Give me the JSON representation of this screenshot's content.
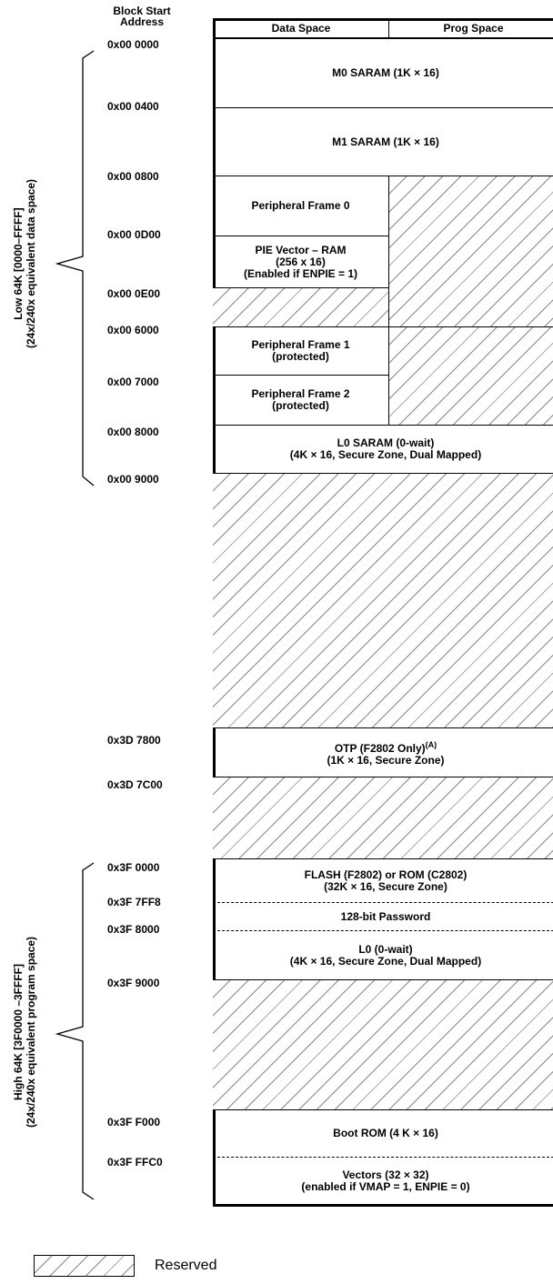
{
  "header": {
    "block_start_line1": "Block Start",
    "block_start_line2": "Address",
    "data_space": "Data Space",
    "prog_space": "Prog Space"
  },
  "addresses": [
    "0x00 0000",
    "0x00 0400",
    "0x00 0800",
    "0x00 0D00",
    "0x00 0E00",
    "0x00 6000",
    "0x00 7000",
    "0x00 8000",
    "0x00 9000",
    "0x3D 7800",
    "0x3D 7C00",
    "0x3F 0000",
    "0x3F 7FF8",
    "0x3F 8000",
    "0x3F 9000",
    "0x3F F000",
    "0x3F FFC0"
  ],
  "regions": {
    "m0": "M0 SARAM (1K × 16)",
    "m1": "M1 SARAM (1K × 16)",
    "pf0": "Peripheral Frame 0",
    "pie_1": "PIE Vector – RAM",
    "pie_2": "(256 x 16)",
    "pie_3": "(Enabled if ENPIE = 1)",
    "pf1_1": "Peripheral Frame 1",
    "pf1_2": "(protected)",
    "pf2_1": "Peripheral Frame 2",
    "pf2_2": "(protected)",
    "l0_saram_1": "L0 SARAM (0-wait)",
    "l0_saram_2": "(4K × 16, Secure Zone, Dual Mapped)",
    "otp_1": "OTP (F2802 Only)",
    "otp_sup": "(A)",
    "otp_2": "(1K × 16, Secure Zone)",
    "flash_1": "FLASH (F2802) or ROM (C2802)",
    "flash_2": "(32K × 16, Secure Zone)",
    "password": "128-bit Password",
    "l0_1": "L0 (0-wait)",
    "l0_2": "(4K × 16, Secure Zone, Dual Mapped)",
    "boot_rom": "Boot ROM (4 K × 16)",
    "vectors_1": "Vectors (32 × 32)",
    "vectors_2": "(enabled if VMAP = 1, ENPIE = 0)"
  },
  "side_labels": {
    "low_1": "Low 64K [0000–FFFF]",
    "low_2": "(24x/240x equivalent data space)",
    "high_1": "High 64K  [3F0000 –3FFFF]",
    "high_2": "(24x/240x equivalent program space)"
  },
  "legend": {
    "reserved": "Reserved"
  }
}
